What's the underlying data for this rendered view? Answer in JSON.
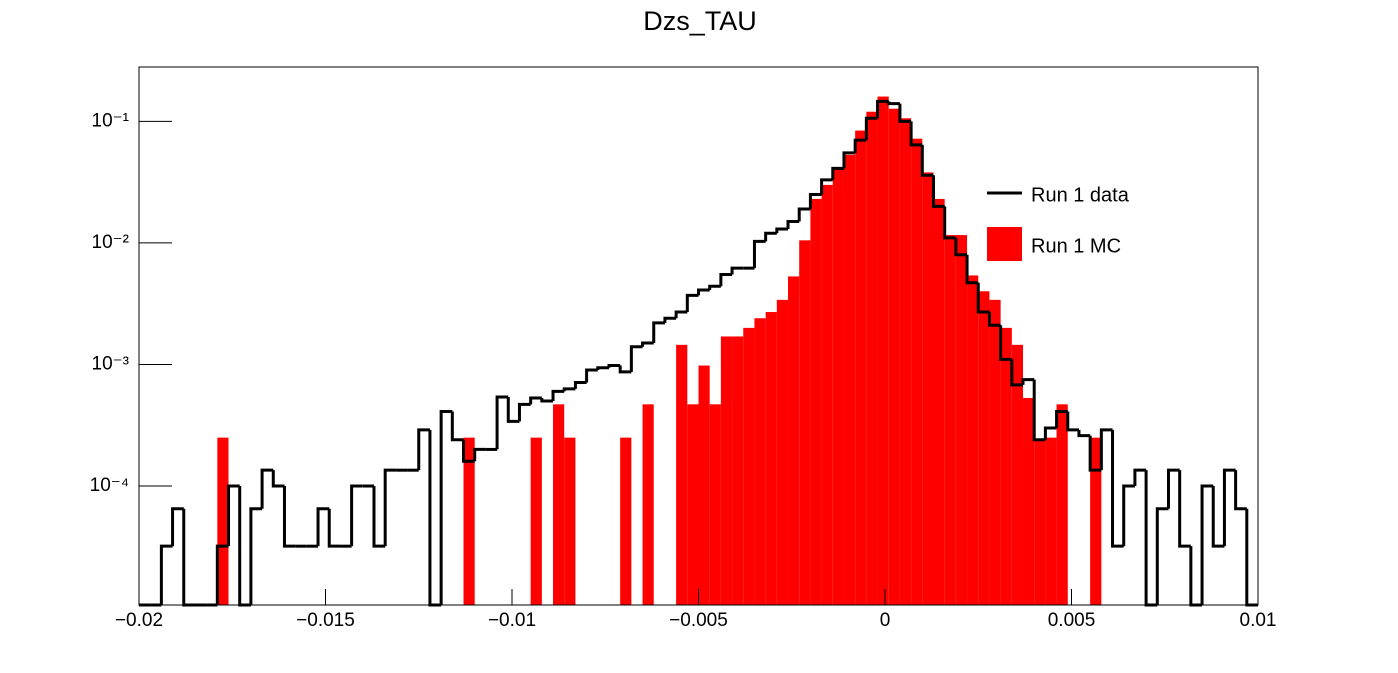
{
  "chart_data": {
    "type": "histogram",
    "title": "Dzs_TAU",
    "bins": [
      -0.02,
      -0.0197,
      -0.0194,
      -0.0191,
      -0.0188,
      -0.0185,
      -0.0182,
      -0.0179,
      -0.0176,
      -0.0173,
      -0.017,
      -0.0167,
      -0.0164,
      -0.0161,
      -0.0158,
      -0.0155,
      -0.0152,
      -0.0149,
      -0.0146,
      -0.0143,
      -0.014,
      -0.0137,
      -0.0134,
      -0.0131,
      -0.0128,
      -0.0125,
      -0.0122,
      -0.0119,
      -0.0116,
      -0.0113,
      -0.011,
      -0.0107,
      -0.0104,
      -0.0101,
      -0.0098,
      -0.0095,
      -0.0092,
      -0.0089,
      -0.0086,
      -0.0083,
      -0.008,
      -0.0077,
      -0.0074,
      -0.0071,
      -0.0068,
      -0.0065,
      -0.0062,
      -0.0059,
      -0.0056,
      -0.0053,
      -0.005,
      -0.0047,
      -0.0044,
      -0.0041,
      -0.0038,
      -0.0035,
      -0.0032,
      -0.0029,
      -0.0026,
      -0.0023,
      -0.002,
      -0.0017,
      -0.0014,
      -0.0011,
      -0.0008,
      -0.0005,
      -0.0002,
      0.0001,
      0.0004,
      0.0007,
      0.001,
      0.0013,
      0.0016,
      0.0019,
      0.0022,
      0.0025,
      0.0028,
      0.0031,
      0.0034,
      0.0037,
      0.004,
      0.0043,
      0.0046,
      0.0049,
      0.0052,
      0.0055,
      0.0058,
      0.0061,
      0.0064,
      0.0067,
      0.007,
      0.0073,
      0.0076,
      0.0079,
      0.0082,
      0.0085,
      0.0088,
      0.0091,
      0.0094,
      0.0097,
      0.01
    ],
    "series": [
      {
        "name": "Run 1 MC",
        "color": "#ff0000",
        "style": "fill",
        "values": [
          0,
          0,
          0,
          0,
          0,
          0,
          0,
          0.00025,
          0,
          0,
          0,
          0,
          0,
          0,
          0,
          0,
          0,
          0,
          0,
          0,
          0,
          0,
          0,
          0,
          0,
          0,
          0,
          0,
          0,
          0.00025,
          0,
          0,
          0,
          0,
          0,
          0.00025,
          0,
          0.00047,
          0.00025,
          0,
          0,
          0,
          0,
          0.00025,
          0,
          0.00047,
          0,
          0,
          0.00145,
          0.00047,
          0.00098,
          0.00047,
          0.0017,
          0.0017,
          0.002,
          0.0024,
          0.0027,
          0.0034,
          0.0053,
          0.0105,
          0.023,
          0.03,
          0.041,
          0.053,
          0.084,
          0.12,
          0.16,
          0.127,
          0.106,
          0.072,
          0.038,
          0.023,
          0.0116,
          0.0116,
          0.0054,
          0.004,
          0.0034,
          0.002,
          0.00145,
          0.00053,
          0.00024,
          0.00025,
          0.00047,
          0,
          0,
          0.00025,
          0,
          0,
          0,
          0,
          0,
          0,
          0,
          0,
          0,
          0,
          0,
          0,
          0,
          0
        ]
      },
      {
        "name": "Run 1 data",
        "color": "#000000",
        "style": "step",
        "values": [
          0,
          0,
          3.2e-05,
          6.5e-05,
          0,
          0,
          0,
          3.2e-05,
          0.0001,
          0,
          6.5e-05,
          0.000135,
          0.0001,
          3.2e-05,
          3.2e-05,
          3.2e-05,
          6.5e-05,
          3.2e-05,
          3.2e-05,
          0.0001,
          0.0001,
          3.2e-05,
          0.000135,
          0.000135,
          0.000135,
          0.00029,
          0,
          0.00041,
          0.00024,
          0.00016,
          0.0002,
          0.0002,
          0.00054,
          0.00034,
          0.00047,
          0.00053,
          0.0005,
          0.0006,
          0.00063,
          0.00071,
          0.0009,
          0.00094,
          0.00098,
          0.00087,
          0.0014,
          0.0015,
          0.0022,
          0.0024,
          0.0027,
          0.0037,
          0.0041,
          0.0044,
          0.0055,
          0.0062,
          0.0062,
          0.0103,
          0.012,
          0.013,
          0.015,
          0.019,
          0.025,
          0.033,
          0.041,
          0.055,
          0.07,
          0.106,
          0.146,
          0.14,
          0.1,
          0.064,
          0.036,
          0.02,
          0.011,
          0.008,
          0.0047,
          0.0027,
          0.0021,
          0.0011,
          0.00068,
          0.00075,
          0.00024,
          0.0003,
          0.00041,
          0.00029,
          0.00026,
          0.000135,
          0.00029,
          3.2e-05,
          0.0001,
          0.000135,
          0,
          6.5e-05,
          0.000135,
          3.2e-05,
          0,
          0.0001,
          3.2e-05,
          0.000135,
          6.5e-05,
          0
        ]
      }
    ],
    "xlim": [
      -0.02,
      0.01
    ],
    "xticks": [
      {
        "value": -0.02,
        "label": "−0.02"
      },
      {
        "value": -0.015,
        "label": "−0.015"
      },
      {
        "value": -0.01,
        "label": "−0.01"
      },
      {
        "value": -0.005,
        "label": "−0.005"
      },
      0,
      0.005,
      0.01
    ],
    "ylim": [
      1.05e-05,
      0.28
    ],
    "yticks": [
      {
        "value": 0.0001,
        "label": "10⁻⁴"
      },
      {
        "value": 0.001,
        "label": "10⁻³"
      },
      {
        "value": 0.01,
        "label": "10⁻²"
      },
      {
        "value": 0.1,
        "label": "10⁻¹"
      }
    ],
    "ylog": true,
    "grid": false,
    "legend": "upper-right"
  }
}
